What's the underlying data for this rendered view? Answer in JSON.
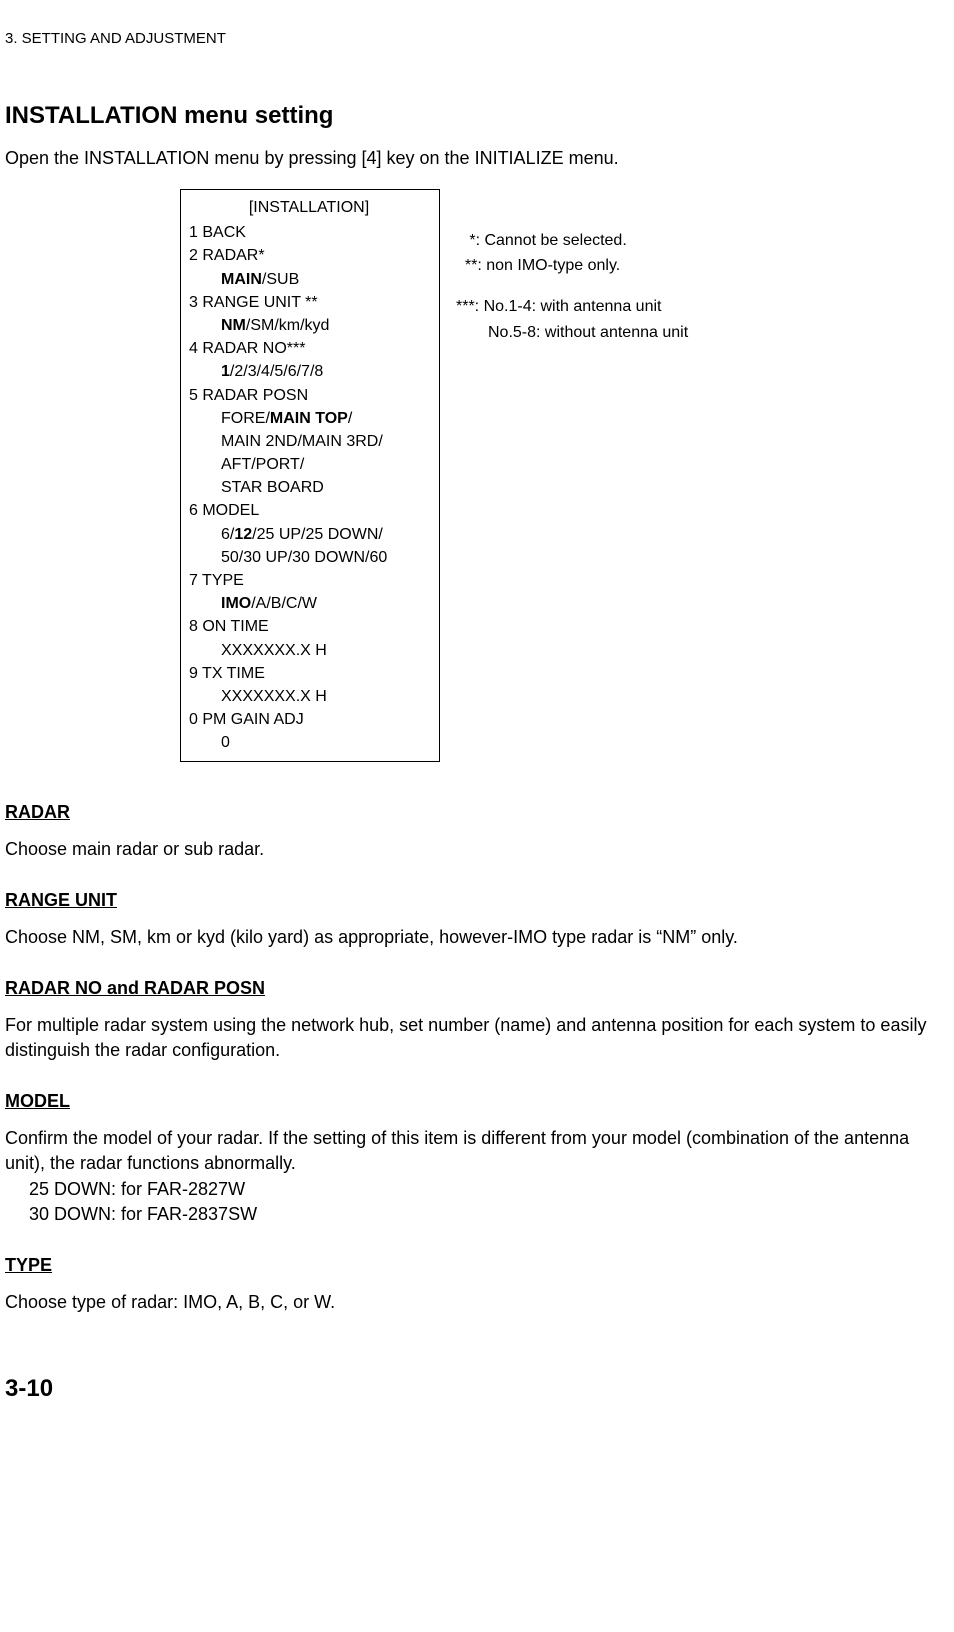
{
  "header": "3. SETTING AND ADJUSTMENT",
  "section_title": "INSTALLATION menu setting",
  "intro": "Open the INSTALLATION menu by pressing [4] key on the INITIALIZE menu.",
  "menu": {
    "title": "[INSTALLATION]",
    "items": {
      "i1": "1  BACK",
      "i2": "2  RADAR*",
      "i2a_bold": "MAIN",
      "i2a_rest": "/SUB",
      "i3": "3  RANGE UNIT **",
      "i3a_bold": "NM",
      "i3a_rest": "/SM/km/kyd",
      "i4": "4  RADAR NO***",
      "i4a_bold": "1",
      "i4a_rest": "/2/3/4/5/6/7/8",
      "i5": "5  RADAR POSN",
      "i5a_pre": "FORE/",
      "i5a_bold": "MAIN TOP",
      "i5a_post": "/",
      "i5b": "MAIN 2ND/MAIN 3RD/",
      "i5c": "AFT/PORT/",
      "i5d": "STAR BOARD",
      "i6": "6  MODEL",
      "i6a_pre": "6/",
      "i6a_bold": "12",
      "i6a_post": "/25 UP/25 DOWN/",
      "i6b": "50/30 UP/30 DOWN/60",
      "i7": "7  TYPE",
      "i7a_bold": "IMO",
      "i7a_rest": "/A/B/C/W",
      "i8": "8  ON TIME",
      "i8a": "XXXXXXX.X H",
      "i9": "9  TX TIME",
      "i9a": "XXXXXXX.X H",
      "i0": "0  PM GAIN ADJ",
      "i0a": "0"
    }
  },
  "notes": {
    "n1": "   *: Cannot be selected.",
    "n2": "  **: non IMO-type only.",
    "n3": "***: No.1-4: with antenna unit",
    "n3b": "No.5-8: without antenna unit"
  },
  "subsections": {
    "radar": {
      "title": "RADAR",
      "body": "Choose main radar or sub radar."
    },
    "range_unit": {
      "title": "RANGE UNIT",
      "body": "Choose NM, SM, km or kyd (kilo yard) as appropriate, however-IMO type radar is “NM” only."
    },
    "radar_no": {
      "title": "RADAR NO and RADAR POSN",
      "body": "For multiple radar system using the network hub, set number (name) and antenna position for each system to easily distinguish the radar configuration."
    },
    "model": {
      "title": "MODEL",
      "body1": "Confirm the model of your radar. If the setting of this item is different from your model (combination of the antenna unit), the radar functions abnormally.",
      "line1": "25 DOWN: for FAR-2827W",
      "line2": "30 DOWN: for FAR-2837SW"
    },
    "type": {
      "title": "TYPE",
      "body": "Choose type of radar: IMO, A, B, C, or W."
    }
  },
  "page_number": "3-10",
  "style": {
    "font_family": "Arial",
    "body_fontsize": 18,
    "header_fontsize": 15,
    "section_title_fontsize": 24,
    "menu_fontsize": 16,
    "page_number_fontsize": 24,
    "text_color": "#000000",
    "background_color": "#ffffff",
    "menu_border_color": "#000000"
  }
}
